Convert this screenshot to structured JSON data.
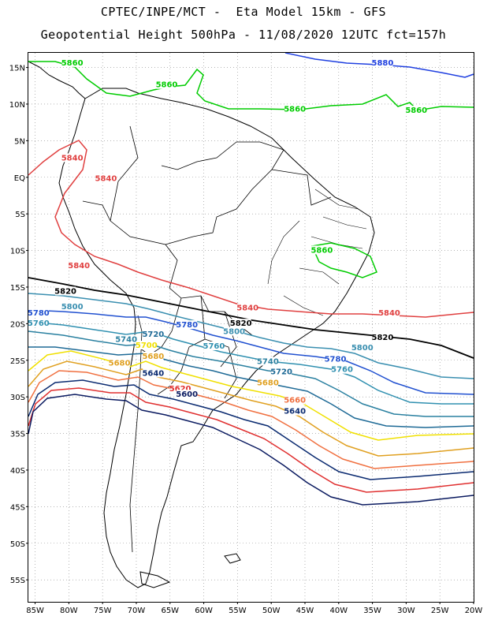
{
  "header": {
    "line1": "CPTEC/INPE/MCT -  Eta Model 15km - GFS",
    "line2": "Geopotential Height 500hPa - 11/08/2020 12UTC fct=157h"
  },
  "axes": {
    "lat_labels": [
      "15N",
      "10N",
      "5N",
      "EQ",
      "5S",
      "10S",
      "15S",
      "20S",
      "25S",
      "30S",
      "35S",
      "40S",
      "45S",
      "50S",
      "55S"
    ],
    "lon_labels": [
      "85W",
      "80W",
      "75W",
      "70W",
      "65W",
      "60W",
      "55W",
      "50W",
      "45W",
      "40W",
      "35W",
      "30W",
      "25W",
      "20W"
    ],
    "lat_range": [
      17,
      -58
    ],
    "lon_range": [
      -86,
      -20
    ],
    "grid": "dotted"
  },
  "contour_colors": {
    "5880": "#2040e0",
    "5860": "#00cc00",
    "5840": "#e04040",
    "5820": "#000000",
    "5800": "#3a8fb0",
    "5780": "#2050d0",
    "5760": "#3090b0",
    "5740": "#2a80a0",
    "5720": "#1e6a96",
    "5700": "#f0e000",
    "5680": "#e0a020",
    "5660": "#f07040",
    "5640": "#0a2a70",
    "5620": "#e03030",
    "5600": "#0a1a60"
  },
  "contour_labels": [
    {
      "text": "5880",
      "lon": -33.5,
      "lat": 15.4
    },
    {
      "text": "5860",
      "lon": -79.5,
      "lat": 15.4
    },
    {
      "text": "5860",
      "lon": -65.5,
      "lat": 12.4
    },
    {
      "text": "5860",
      "lon": -46.5,
      "lat": 9.1
    },
    {
      "text": "5860",
      "lon": -28.5,
      "lat": 8.9
    },
    {
      "text": "5860",
      "lon": -42.5,
      "lat": -10.2
    },
    {
      "text": "5840",
      "lon": -79.5,
      "lat": 2.4
    },
    {
      "text": "5840",
      "lon": -74.5,
      "lat": -0.4
    },
    {
      "text": "5840",
      "lon": -78.5,
      "lat": -12.3
    },
    {
      "text": "5840",
      "lon": -53.5,
      "lat": -18.1
    },
    {
      "text": "5840",
      "lon": -32.5,
      "lat": -18.8
    },
    {
      "text": "5820",
      "lon": -80.5,
      "lat": -15.8
    },
    {
      "text": "5820",
      "lon": -54.5,
      "lat": -20.2
    },
    {
      "text": "5820",
      "lon": -33.5,
      "lat": -22.1
    },
    {
      "text": "5800",
      "lon": -79.5,
      "lat": -17.9
    },
    {
      "text": "5800",
      "lon": -55.5,
      "lat": -21.3
    },
    {
      "text": "5800",
      "lon": -36.5,
      "lat": -23.5
    },
    {
      "text": "5780",
      "lon": -84.5,
      "lat": -18.8
    },
    {
      "text": "5780",
      "lon": -62.5,
      "lat": -20.4
    },
    {
      "text": "5780",
      "lon": -40.5,
      "lat": -25.1
    },
    {
      "text": "5760",
      "lon": -84.5,
      "lat": -20.2
    },
    {
      "text": "5760",
      "lon": -58.5,
      "lat": -23.3
    },
    {
      "text": "5760",
      "lon": -39.5,
      "lat": -26.5
    },
    {
      "text": "5740",
      "lon": -71.5,
      "lat": -22.4
    },
    {
      "text": "5740",
      "lon": -50.5,
      "lat": -25.4
    },
    {
      "text": "5720",
      "lon": -67.5,
      "lat": -21.7
    },
    {
      "text": "5720",
      "lon": -48.5,
      "lat": -26.8
    },
    {
      "text": "5700",
      "lon": -68.5,
      "lat": -23.2
    },
    {
      "text": "5680",
      "lon": -67.5,
      "lat": -24.7
    },
    {
      "text": "5680",
      "lon": -72.5,
      "lat": -25.6
    },
    {
      "text": "5680",
      "lon": -50.5,
      "lat": -28.3
    },
    {
      "text": "5660",
      "lon": -46.5,
      "lat": -30.7
    },
    {
      "text": "5640",
      "lon": -67.5,
      "lat": -27.0
    },
    {
      "text": "5640",
      "lon": -46.5,
      "lat": -32.2
    },
    {
      "text": "5620",
      "lon": -63.5,
      "lat": -29.1
    },
    {
      "text": "5600",
      "lon": -62.5,
      "lat": -29.9
    }
  ]
}
